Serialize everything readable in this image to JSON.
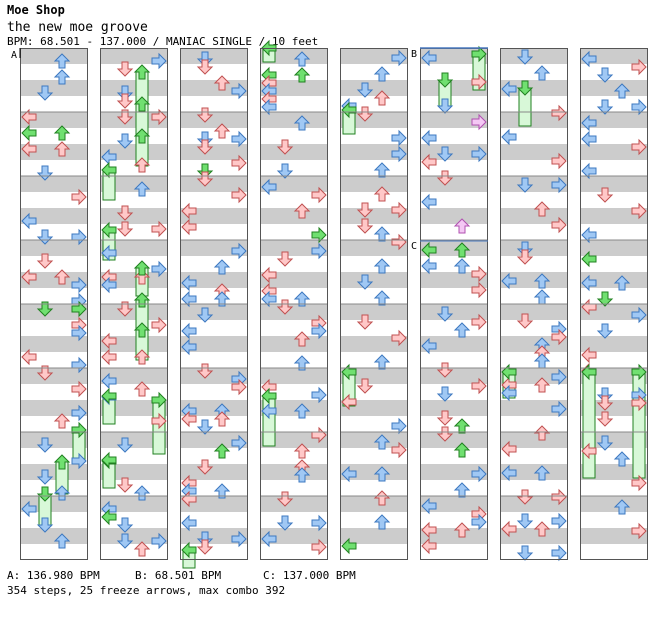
{
  "header": {
    "artist": "Moe Shop",
    "title": "the new moe groove",
    "bpm_line": "BPM: 68.501 - 137.000 / MANIAC SINGLE / 10 feet"
  },
  "section_labels": {
    "a": "A",
    "b": "B",
    "c": "C"
  },
  "legend": {
    "a": "A: 136.980 BPM",
    "b": "B: 68.501 BPM",
    "c": "C: 137.000 BPM"
  },
  "summary": "354 steps, 25 freeze arrows, max combo 392",
  "colors": {
    "red_fill": "#ffc8c8",
    "red_stroke": "#c05050",
    "blue_fill": "#a0c8f4",
    "blue_stroke": "#3c78c0",
    "green_fill": "#70e070",
    "green_stroke": "#208020",
    "pink_fill": "#f4c8f4",
    "pink_stroke": "#b050b0",
    "band_gray": "#cccccc",
    "freeze_fill": "#d8f8d8"
  }
}
